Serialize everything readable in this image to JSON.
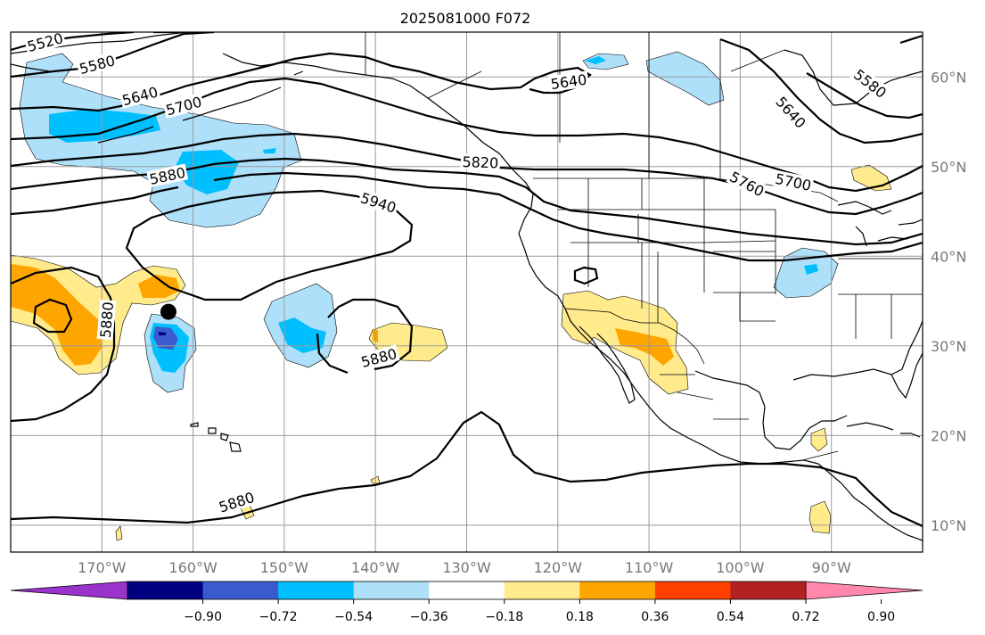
{
  "title": "2025081000 F072",
  "map": {
    "lon_range": [
      -180,
      -80
    ],
    "lat_range": [
      7,
      65
    ],
    "lon_ticks": [
      {
        "value": -170,
        "label": "170°W"
      },
      {
        "value": -160,
        "label": "160°W"
      },
      {
        "value": -150,
        "label": "150°W"
      },
      {
        "value": -140,
        "label": "140°W"
      },
      {
        "value": -130,
        "label": "130°W"
      },
      {
        "value": -120,
        "label": "120°W"
      },
      {
        "value": -110,
        "label": "110°W"
      },
      {
        "value": -100,
        "label": "100°W"
      },
      {
        "value": -90,
        "label": "90°W"
      }
    ],
    "lat_ticks": [
      {
        "value": 60,
        "label": "60°N"
      },
      {
        "value": 50,
        "label": "50°N"
      },
      {
        "value": 40,
        "label": "40°N"
      },
      {
        "value": 30,
        "label": "30°N"
      },
      {
        "value": 20,
        "label": "20°N"
      },
      {
        "value": 10,
        "label": "10°N"
      }
    ],
    "contour_labels": [
      {
        "text": "5520",
        "lon": -176.2,
        "lat": 63.8,
        "angle": -15
      },
      {
        "text": "5580",
        "lon": -170.5,
        "lat": 61.3,
        "angle": -15
      },
      {
        "text": "5640",
        "lon": -165.8,
        "lat": 57.8,
        "angle": -15
      },
      {
        "text": "5700",
        "lon": -161.0,
        "lat": 56.7,
        "angle": -15
      },
      {
        "text": "5880",
        "lon": -162.8,
        "lat": 48.9,
        "angle": -12
      },
      {
        "text": "5940",
        "lon": -139.7,
        "lat": 45.9,
        "angle": 18
      },
      {
        "text": "5880",
        "lon": -169.4,
        "lat": 32.9,
        "angle": -85
      },
      {
        "text": "5880",
        "lon": -139.6,
        "lat": 28.6,
        "angle": -15
      },
      {
        "text": "5880",
        "lon": -155.2,
        "lat": 12.5,
        "angle": -18
      },
      {
        "text": "5820",
        "lon": -128.5,
        "lat": 50.4,
        "angle": 2
      },
      {
        "text": "5640",
        "lon": -118.8,
        "lat": 59.4,
        "angle": -8
      },
      {
        "text": "5640",
        "lon": -94.5,
        "lat": 56.0,
        "angle": 48
      },
      {
        "text": "5580",
        "lon": -85.8,
        "lat": 59.2,
        "angle": 38
      },
      {
        "text": "5760",
        "lon": -99.3,
        "lat": 48.0,
        "angle": 28
      },
      {
        "text": "5700",
        "lon": -94.2,
        "lat": 48.2,
        "angle": 12
      }
    ],
    "marker": {
      "lon": -162.7,
      "lat": 33.8
    }
  },
  "colorbar": {
    "colors": [
      "#9933cc",
      "#000080",
      "#3a5acd",
      "#00bfff",
      "#aee0fa",
      "#ffffff",
      "#ffeb8c",
      "#ffa500",
      "#ff3f00",
      "#b22222",
      "#ff88ac"
    ],
    "tick_labels": [
      "−0.90",
      "−0.72",
      "−0.54",
      "−0.36",
      "−0.18",
      "0.18",
      "0.36",
      "0.54",
      "0.72",
      "0.90"
    ]
  }
}
